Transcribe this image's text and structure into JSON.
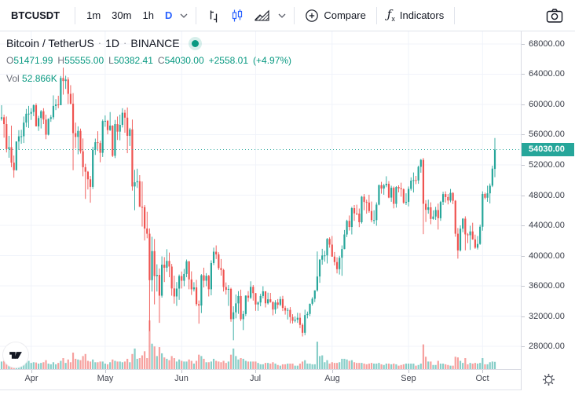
{
  "toolbar": {
    "symbol": "BTCUSDT",
    "timeframes": [
      "1m",
      "30m",
      "1h",
      "D"
    ],
    "active_timeframe": "D",
    "compare_label": "Compare",
    "indicators_label": "Indicators",
    "fx_glyph": "ƒ",
    "fx_sub": "x"
  },
  "legend": {
    "title": "Bitcoin / TetherUS",
    "dot_sep": "·",
    "interval": "1D",
    "exchange": "BINANCE",
    "ohlc": {
      "o_label": "O",
      "o": "51471.99",
      "h_label": "H",
      "h": "55555.00",
      "l_label": "L",
      "l": "50382.41",
      "c_label": "C",
      "c": "54030.00",
      "change": "+2558.01",
      "change_pct": "(+4.97%)"
    },
    "vol_label": "Vol",
    "vol_value": "52.866K"
  },
  "price_axis": {
    "last_price_label": "54030.00"
  },
  "colors": {
    "accent_blue": "#2962ff",
    "teal_text": "#089981",
    "up": "#26a69a",
    "down": "#ef5350",
    "vol_up": "rgba(38,166,154,0.55)",
    "vol_down": "rgba(239,83,80,0.55)",
    "grid": "#f0f3fa",
    "last_price_label_bg": "#26a69a"
  },
  "chart_data": {
    "type": "candlestick",
    "title": "Bitcoin / TetherUS · 1D · BINANCE",
    "symbol": "BTCUSDT",
    "interval": "1D",
    "exchange": "BINANCE",
    "last_price": 54030,
    "price_range": [
      24990,
      69660
    ],
    "y_ticks": [
      28000,
      32000,
      36000,
      40000,
      44000,
      48000,
      52000,
      56000,
      60000,
      64000,
      68000
    ],
    "x_ticks": [
      {
        "label": "Apr",
        "index": 12
      },
      {
        "label": "May",
        "index": 42
      },
      {
        "label": "Jun",
        "index": 73
      },
      {
        "label": "Jul",
        "index": 103
      },
      {
        "label": "Aug",
        "index": 134
      },
      {
        "label": "Sep",
        "index": 165
      },
      {
        "label": "Oct",
        "index": 195
      }
    ],
    "volume_unit": "K",
    "candles_format": [
      "open",
      "high",
      "low",
      "close",
      "volume"
    ],
    "candles": [
      [
        58100,
        59900,
        57850,
        58300,
        55
      ],
      [
        58300,
        58650,
        55600,
        57400,
        60
      ],
      [
        57400,
        58400,
        53650,
        54100,
        75
      ],
      [
        54100,
        55850,
        52950,
        54340,
        70
      ],
      [
        54340,
        57200,
        51700,
        52300,
        80
      ],
      [
        52300,
        53250,
        50300,
        51300,
        90
      ],
      [
        51300,
        55100,
        51250,
        55100,
        65
      ],
      [
        55100,
        56600,
        53975,
        55780,
        50
      ],
      [
        55780,
        56650,
        54800,
        55790,
        45
      ],
      [
        55790,
        58400,
        54900,
        57600,
        60
      ],
      [
        57600,
        59400,
        57000,
        58770,
        55
      ],
      [
        58770,
        59800,
        56900,
        58780,
        60
      ],
      [
        58780,
        59500,
        57950,
        59000,
        45
      ],
      [
        59000,
        60000,
        58450,
        59900,
        50
      ],
      [
        59900,
        60150,
        57100,
        57100,
        48
      ],
      [
        57100,
        58500,
        56500,
        58200,
        40
      ],
      [
        58200,
        59250,
        56820,
        59100,
        45
      ],
      [
        59100,
        59500,
        57400,
        58000,
        50
      ],
      [
        58000,
        58650,
        55400,
        56000,
        65
      ],
      [
        56000,
        58150,
        55900,
        58100,
        40
      ],
      [
        58100,
        58600,
        57700,
        58300,
        35
      ],
      [
        58300,
        61200,
        58000,
        59800,
        50
      ],
      [
        59800,
        60700,
        59250,
        60000,
        35
      ],
      [
        60000,
        61150,
        59500,
        59900,
        45
      ],
      [
        59900,
        63770,
        59900,
        63500,
        60
      ],
      [
        63500,
        64863,
        61300,
        63100,
        80
      ],
      [
        63100,
        63800,
        62050,
        63300,
        45
      ],
      [
        63300,
        63600,
        60050,
        61400,
        70
      ],
      [
        61400,
        62550,
        60000,
        60100,
        50
      ],
      [
        60100,
        61500,
        51300,
        56200,
        120
      ],
      [
        56200,
        57600,
        54200,
        55700,
        75
      ],
      [
        55700,
        57100,
        53400,
        56500,
        70
      ],
      [
        56500,
        56800,
        53500,
        53800,
        65
      ],
      [
        53800,
        55500,
        50500,
        51700,
        95
      ],
      [
        51700,
        52150,
        47500,
        51100,
        110
      ],
      [
        51100,
        51200,
        48750,
        50100,
        60
      ],
      [
        50100,
        50550,
        47000,
        49100,
        55
      ],
      [
        49100,
        54400,
        48820,
        54000,
        70
      ],
      [
        54000,
        55480,
        53320,
        55000,
        50
      ],
      [
        55000,
        56450,
        53850,
        54900,
        50
      ],
      [
        54900,
        55200,
        52350,
        53600,
        55
      ],
      [
        53600,
        58000,
        53050,
        57800,
        55
      ],
      [
        57800,
        58550,
        57050,
        57830,
        40
      ],
      [
        57830,
        57950,
        56050,
        56600,
        35
      ],
      [
        56600,
        58990,
        56500,
        57200,
        50
      ],
      [
        57200,
        57250,
        53050,
        53200,
        70
      ],
      [
        53200,
        57950,
        52900,
        57400,
        60
      ],
      [
        57400,
        58400,
        55300,
        56400,
        55
      ],
      [
        56400,
        58650,
        55250,
        57300,
        55
      ],
      [
        57300,
        59500,
        56950,
        58900,
        50
      ],
      [
        58900,
        59300,
        56250,
        58250,
        55
      ],
      [
        58250,
        59600,
        53550,
        55850,
        75
      ],
      [
        55850,
        56900,
        54500,
        56700,
        50
      ],
      [
        56700,
        58000,
        48600,
        49150,
        110
      ],
      [
        49150,
        51350,
        46000,
        49700,
        150
      ],
      [
        49700,
        51500,
        48950,
        49850,
        75
      ],
      [
        49850,
        50650,
        46500,
        46450,
        80
      ],
      [
        46450,
        49800,
        43850,
        46415,
        100
      ],
      [
        46415,
        46700,
        42000,
        43580,
        130
      ],
      [
        43580,
        45800,
        42300,
        42900,
        80
      ],
      [
        42900,
        43600,
        30000,
        36750,
        355
      ],
      [
        36750,
        42500,
        35250,
        40600,
        185
      ],
      [
        40600,
        42200,
        33550,
        37300,
        165
      ],
      [
        37300,
        38850,
        35250,
        37450,
        95
      ],
      [
        37450,
        38300,
        31100,
        34700,
        160
      ],
      [
        34700,
        39900,
        34450,
        38800,
        115
      ],
      [
        38800,
        39800,
        36500,
        38400,
        85
      ],
      [
        38400,
        40850,
        37850,
        39300,
        75
      ],
      [
        39300,
        40400,
        37150,
        38550,
        65
      ],
      [
        38550,
        38900,
        34700,
        35660,
        95
      ],
      [
        35660,
        37350,
        33650,
        34600,
        80
      ],
      [
        34600,
        36500,
        33350,
        35640,
        55
      ],
      [
        35640,
        37500,
        34150,
        37300,
        70
      ],
      [
        37300,
        37900,
        35650,
        36680,
        60
      ],
      [
        36680,
        38250,
        35950,
        37570,
        55
      ],
      [
        37570,
        39480,
        37150,
        39250,
        55
      ],
      [
        39250,
        39290,
        35550,
        36850,
        70
      ],
      [
        36850,
        37920,
        34800,
        35540,
        60
      ],
      [
        35540,
        36480,
        35260,
        35800,
        40
      ],
      [
        35800,
        36800,
        33330,
        33580,
        60
      ],
      [
        33580,
        34070,
        31000,
        33400,
        105
      ],
      [
        33400,
        37550,
        32400,
        37400,
        95
      ],
      [
        37400,
        38400,
        35800,
        36680,
        75
      ],
      [
        36680,
        37680,
        35950,
        37330,
        50
      ],
      [
        37330,
        37450,
        34600,
        35550,
        50
      ],
      [
        35550,
        39380,
        34750,
        39020,
        55
      ],
      [
        39020,
        41050,
        38750,
        40520,
        75
      ],
      [
        40520,
        41350,
        39550,
        40160,
        60
      ],
      [
        40160,
        40450,
        38100,
        38350,
        55
      ],
      [
        38350,
        39550,
        37350,
        38100,
        50
      ],
      [
        38100,
        38250,
        35250,
        35850,
        60
      ],
      [
        35850,
        36450,
        34850,
        35480,
        45
      ],
      [
        35480,
        36100,
        33350,
        35600,
        55
      ],
      [
        35600,
        35750,
        31250,
        31600,
        105
      ],
      [
        31600,
        33300,
        28800,
        32500,
        150
      ],
      [
        32500,
        34850,
        31700,
        33680,
        95
      ],
      [
        33680,
        35300,
        32300,
        34660,
        70
      ],
      [
        34660,
        35500,
        31350,
        31590,
        80
      ],
      [
        31590,
        32700,
        30150,
        32280,
        75
      ],
      [
        32280,
        34750,
        32000,
        34700,
        60
      ],
      [
        34700,
        35300,
        33900,
        34430,
        55
      ],
      [
        34430,
        36600,
        34250,
        35870,
        55
      ],
      [
        35870,
        36100,
        34050,
        35040,
        55
      ],
      [
        35040,
        35050,
        32700,
        33540,
        55
      ],
      [
        33540,
        33950,
        32700,
        33800,
        45
      ],
      [
        33800,
        34950,
        33300,
        34660,
        35
      ],
      [
        34660,
        35950,
        34350,
        35280,
        35
      ],
      [
        35280,
        35290,
        33150,
        33690,
        45
      ],
      [
        33690,
        35100,
        33530,
        34220,
        45
      ],
      [
        34220,
        35070,
        33780,
        33860,
        40
      ],
      [
        33860,
        33930,
        32100,
        32870,
        50
      ],
      [
        32870,
        34100,
        32300,
        33800,
        40
      ],
      [
        33800,
        34250,
        33000,
        33500,
        30
      ],
      [
        33500,
        34600,
        33300,
        34250,
        25
      ],
      [
        34250,
        34680,
        32660,
        33080,
        35
      ],
      [
        33080,
        33340,
        32200,
        32730,
        35
      ],
      [
        32730,
        33100,
        31550,
        32820,
        40
      ],
      [
        32820,
        33190,
        31050,
        31870,
        40
      ],
      [
        31870,
        32250,
        31020,
        31380,
        40
      ],
      [
        31380,
        31950,
        31160,
        31520,
        25
      ],
      [
        31520,
        32440,
        31100,
        31780,
        25
      ],
      [
        31780,
        32400,
        30400,
        30840,
        40
      ],
      [
        30840,
        31050,
        29300,
        29790,
        55
      ],
      [
        29790,
        32850,
        29480,
        32140,
        65
      ],
      [
        32140,
        32600,
        31700,
        32290,
        40
      ],
      [
        32290,
        33650,
        32000,
        33630,
        40
      ],
      [
        33630,
        34500,
        33400,
        34290,
        35
      ],
      [
        34290,
        35400,
        33850,
        35400,
        35
      ],
      [
        35400,
        40550,
        35230,
        37240,
        200
      ],
      [
        37240,
        39540,
        36400,
        39460,
        95
      ],
      [
        39460,
        40900,
        38800,
        40020,
        100
      ],
      [
        40020,
        40640,
        39200,
        40030,
        50
      ],
      [
        40030,
        42320,
        38960,
        42210,
        65
      ],
      [
        42210,
        42420,
        41050,
        41460,
        40
      ],
      [
        41460,
        42600,
        39850,
        39870,
        50
      ],
      [
        39870,
        40480,
        38700,
        39150,
        45
      ],
      [
        39150,
        39780,
        37650,
        38210,
        45
      ],
      [
        38210,
        39970,
        37500,
        39720,
        50
      ],
      [
        39720,
        41350,
        37330,
        40870,
        75
      ],
      [
        40870,
        43390,
        40850,
        42800,
        75
      ],
      [
        42800,
        44750,
        42450,
        44600,
        70
      ],
      [
        44600,
        45310,
        43320,
        43790,
        60
      ],
      [
        43790,
        46450,
        42800,
        46280,
        65
      ],
      [
        46280,
        46700,
        44600,
        45590,
        50
      ],
      [
        45590,
        46740,
        45350,
        45560,
        45
      ],
      [
        45560,
        46230,
        43770,
        44420,
        45
      ],
      [
        44420,
        47890,
        44240,
        47800,
        45
      ],
      [
        47800,
        48150,
        46000,
        47100,
        40
      ],
      [
        47100,
        47400,
        45550,
        47020,
        35
      ],
      [
        47020,
        48050,
        45670,
        45900,
        40
      ],
      [
        45900,
        47160,
        44400,
        44690,
        45
      ],
      [
        44690,
        46000,
        44200,
        44700,
        40
      ],
      [
        44700,
        47050,
        43950,
        46750,
        40
      ],
      [
        46750,
        49400,
        46660,
        49320,
        45
      ],
      [
        49320,
        49760,
        48200,
        48870,
        35
      ],
      [
        48870,
        49500,
        48050,
        49290,
        30
      ],
      [
        49290,
        50500,
        49050,
        49500,
        40
      ],
      [
        49500,
        49860,
        47600,
        47680,
        40
      ],
      [
        47680,
        49250,
        47120,
        48980,
        35
      ],
      [
        48980,
        49150,
        46250,
        46850,
        40
      ],
      [
        46850,
        49200,
        46350,
        49080,
        35
      ],
      [
        49080,
        49300,
        48370,
        48900,
        25
      ],
      [
        48900,
        49650,
        47800,
        48780,
        30
      ],
      [
        48780,
        48900,
        46853,
        46990,
        35
      ],
      [
        46990,
        48250,
        46700,
        47110,
        40
      ],
      [
        47110,
        49150,
        46510,
        48830,
        40
      ],
      [
        48830,
        50350,
        48600,
        49920,
        40
      ],
      [
        49920,
        51000,
        48350,
        49990,
        40
      ],
      [
        49990,
        50550,
        49450,
        49940,
        25
      ],
      [
        49940,
        51900,
        49500,
        51750,
        30
      ],
      [
        51750,
        52780,
        50970,
        52670,
        40
      ],
      [
        52670,
        52920,
        42840,
        46860,
        180
      ],
      [
        46860,
        47340,
        44450,
        46060,
        90
      ],
      [
        46060,
        47400,
        45550,
        46390,
        55
      ],
      [
        46390,
        47050,
        44150,
        44850,
        55
      ],
      [
        44850,
        45990,
        44750,
        45170,
        30
      ],
      [
        45170,
        46450,
        44730,
        46030,
        30
      ],
      [
        46030,
        46880,
        43450,
        44950,
        60
      ],
      [
        44950,
        47250,
        44600,
        47100,
        40
      ],
      [
        47100,
        48450,
        46700,
        48140,
        40
      ],
      [
        48140,
        48500,
        47020,
        47750,
        35
      ],
      [
        47750,
        48150,
        46780,
        47290,
        30
      ],
      [
        47290,
        48820,
        47050,
        48300,
        25
      ],
      [
        48300,
        48380,
        46820,
        47260,
        25
      ],
      [
        47260,
        47350,
        42500,
        42900,
        90
      ],
      [
        42900,
        43650,
        39600,
        40690,
        85
      ],
      [
        40690,
        44000,
        40550,
        43560,
        60
      ],
      [
        43560,
        44950,
        43100,
        44890,
        45
      ],
      [
        44890,
        45200,
        40700,
        42810,
        80
      ],
      [
        42810,
        42990,
        41650,
        42700,
        35
      ],
      [
        42700,
        43950,
        40750,
        43200,
        45
      ],
      [
        43200,
        44350,
        42100,
        42150,
        40
      ],
      [
        42150,
        42780,
        40900,
        41050,
        45
      ],
      [
        41050,
        42600,
        40800,
        41540,
        40
      ],
      [
        41540,
        44100,
        41430,
        43820,
        45
      ],
      [
        43820,
        48500,
        43300,
        48160,
        80
      ],
      [
        48160,
        48340,
        47450,
        47660,
        35
      ],
      [
        47660,
        49250,
        47120,
        48240,
        35
      ],
      [
        48240,
        49540,
        46900,
        49250,
        50
      ],
      [
        49250,
        51900,
        49070,
        51510,
        55
      ],
      [
        51471.99,
        55555,
        50382.41,
        54030,
        52.866
      ]
    ]
  }
}
